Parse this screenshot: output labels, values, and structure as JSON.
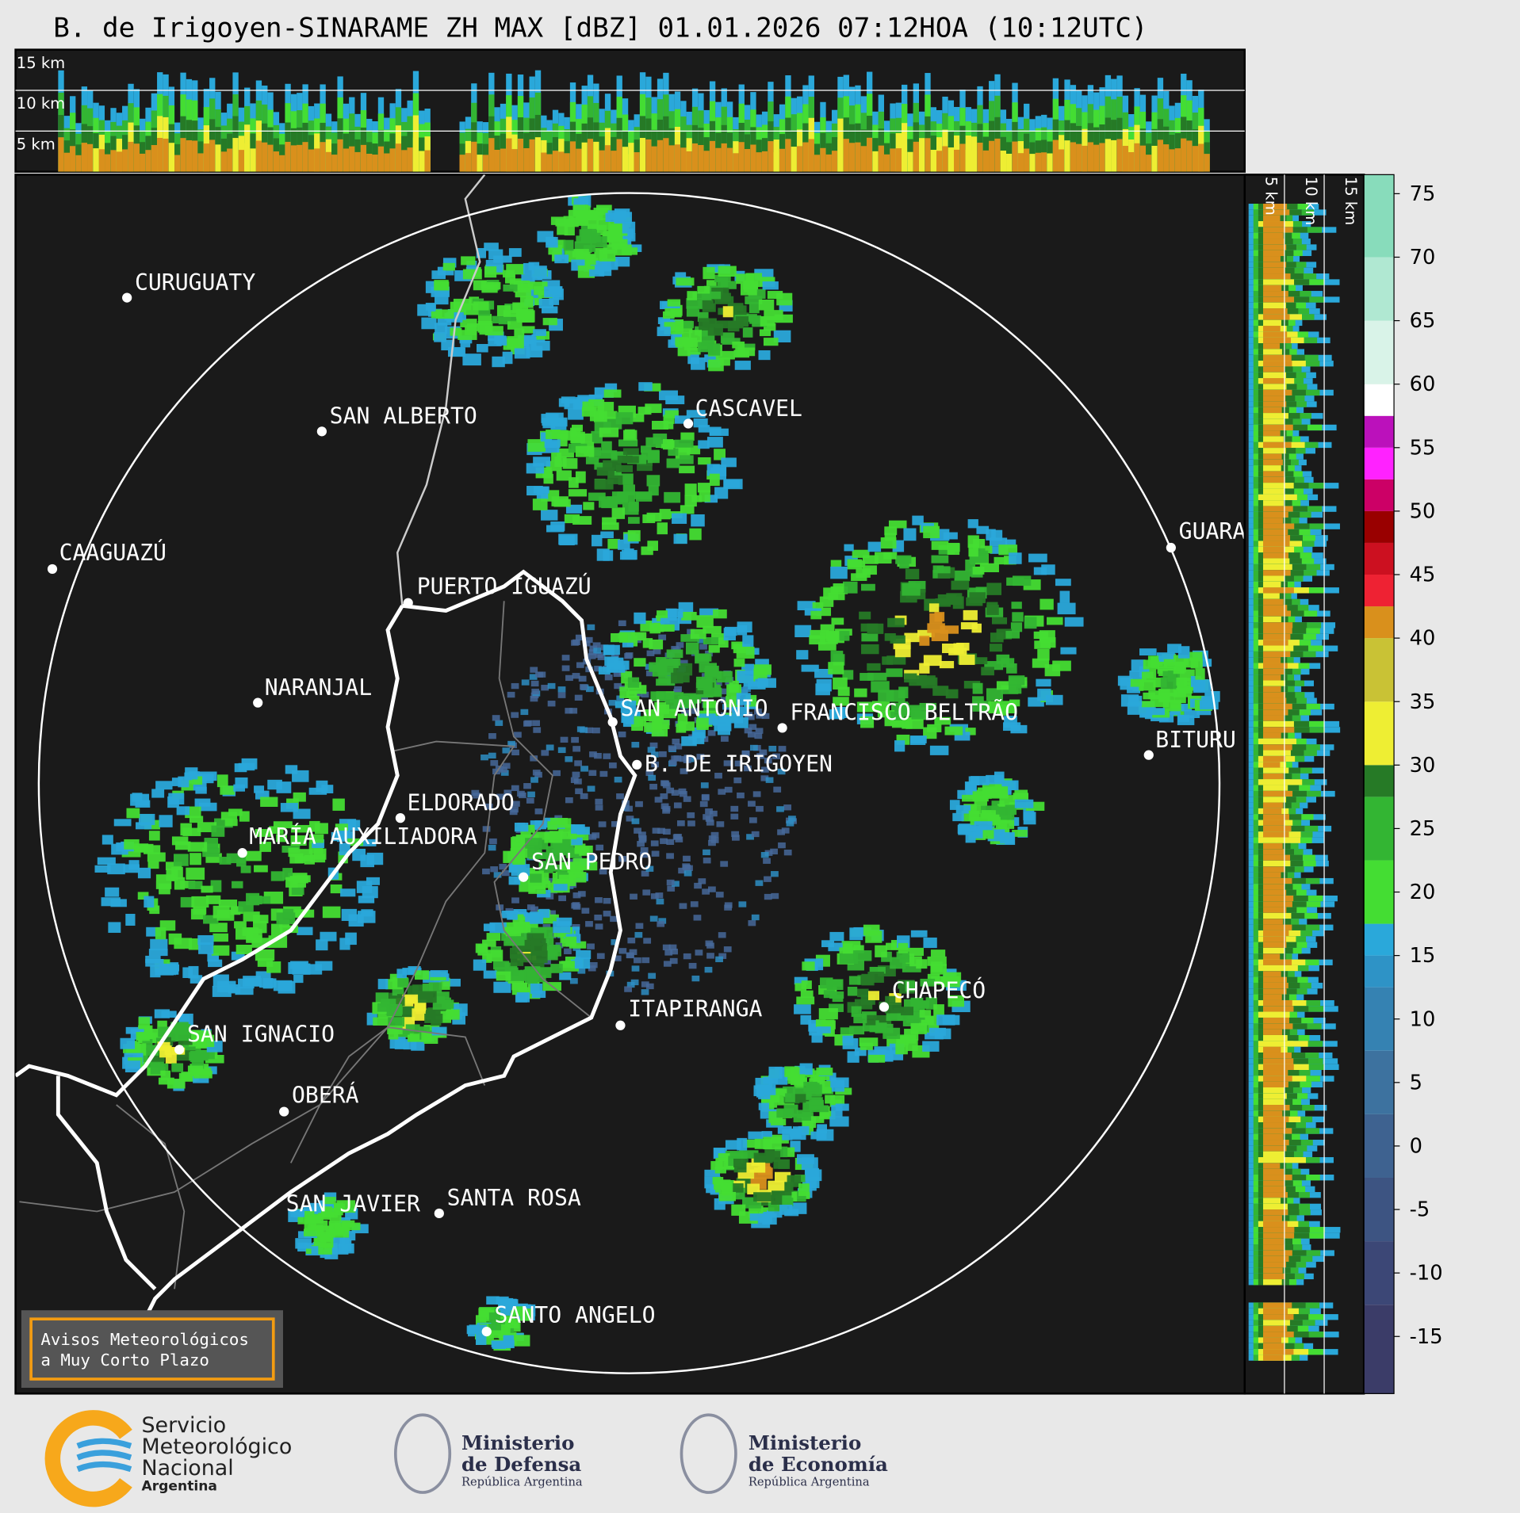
{
  "header": {
    "title": "B. de Irigoyen-SINARAME ZH MAX [dBZ] 01.01.2026 07:12HOA (10:12UTC)"
  },
  "top_panel": {
    "height_labels": [
      "15 km",
      "10 km",
      "5 km"
    ]
  },
  "side_panel": {
    "height_labels": [
      "5 km",
      "10 km",
      "15 km"
    ]
  },
  "map": {
    "cities": [
      "CURUGUATY",
      "SAN ALBERTO",
      "CASCAVEL",
      "GUARA",
      "CAAGUAZÚ",
      "PUERTO IGUAZÚ",
      "NARANJAL",
      "SAN ANTONIO",
      "FRANCISCO BELTRÃO",
      "BITURU",
      "B. DE IRIGOYEN",
      "ELDORADO",
      "MARÍA AUXILIADORA",
      "SAN PEDRO",
      "CHAPECÓ",
      "ITAPIRANGA",
      "SAN IGNACIO",
      "OBERÁ",
      "SAN JAVIER",
      "SANTA ROSA",
      "SANTO ANGELO"
    ]
  },
  "colorbar": {
    "lim": [
      -19.5,
      76.5
    ],
    "ticks": [
      75,
      70,
      65,
      60,
      55,
      50,
      45,
      40,
      35,
      30,
      25,
      20,
      15,
      10,
      5,
      0,
      -5,
      -10,
      -15
    ],
    "bands": [
      {
        "from": -19.5,
        "color": "#3b3c68"
      },
      {
        "from": -12.5,
        "color": "#3c4776"
      },
      {
        "from": -7.5,
        "color": "#3d5482"
      },
      {
        "from": -2.5,
        "color": "#3e6290"
      },
      {
        "from": 2.5,
        "color": "#3d729f"
      },
      {
        "from": 7.5,
        "color": "#3582b2"
      },
      {
        "from": 12.5,
        "color": "#2e93c6"
      },
      {
        "from": 15,
        "color": "#2aa8da"
      },
      {
        "from": 17.5,
        "color": "#44dd33"
      },
      {
        "from": 22.5,
        "color": "#33b533"
      },
      {
        "from": 27.5,
        "color": "#267a26"
      },
      {
        "from": 30,
        "color": "#eeee33"
      },
      {
        "from": 35,
        "color": "#c9c235"
      },
      {
        "from": 40,
        "color": "#d9901c"
      },
      {
        "from": 42.5,
        "color": "#ee2233"
      },
      {
        "from": 45,
        "color": "#cc1020"
      },
      {
        "from": 47.5,
        "color": "#990000"
      },
      {
        "from": 50,
        "color": "#cc0066"
      },
      {
        "from": 52.5,
        "color": "#ff22ff"
      },
      {
        "from": 55,
        "color": "#bb11bb"
      },
      {
        "from": 57.5,
        "color": "#ffffff"
      },
      {
        "from": 60,
        "color": "#d9f3e8"
      },
      {
        "from": 65,
        "color": "#b0e8d2"
      },
      {
        "from": 70,
        "color": "#88dcbb"
      }
    ]
  },
  "warning_box": {
    "lines": [
      "Avisos Meteorológicos",
      "a Muy Corto Plazo"
    ]
  },
  "footer": {
    "smn": [
      "Servicio",
      "Meteorológico",
      "Nacional",
      "Argentina"
    ],
    "defensa": [
      "Ministerio",
      "de Defensa",
      "República Argentina"
    ],
    "economia": [
      "Ministerio",
      "de Economía",
      "República Argentina"
    ]
  }
}
